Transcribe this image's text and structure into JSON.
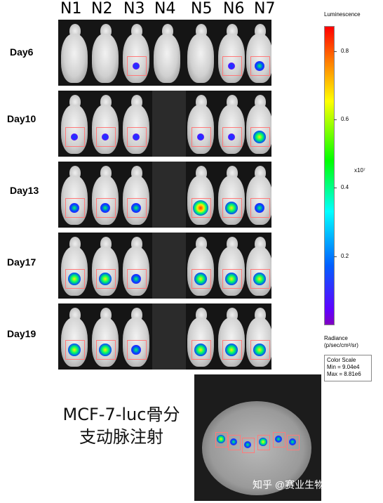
{
  "columns": [
    "N1",
    "N2",
    "N3",
    "N4",
    "N5",
    "N6",
    "N7"
  ],
  "days": [
    "Day6",
    "Day10",
    "Day13",
    "Day17",
    "Day19"
  ],
  "colorbar": {
    "title": "Luminescence",
    "ticks": [
      "0.8",
      "0.6",
      "0.4",
      "0.2"
    ],
    "multiplier": "x10⁷",
    "units_line1": "Radiance",
    "units_line2": "(p/sec/cm²/sr)",
    "box_title": "Color Scale",
    "box_min": "Min = 9.04e4",
    "box_max": "Max = 8.81e6"
  },
  "caption_line1": "MCF-7-luc骨分",
  "caption_line2": "支动脉注射",
  "watermark": "知乎 @赛业生物cyagen",
  "colors": {
    "hot": "#ff3300",
    "warm": "#ffee00",
    "mid": "#00ff66",
    "cool": "#0044ff",
    "low": "#7a00ff"
  }
}
